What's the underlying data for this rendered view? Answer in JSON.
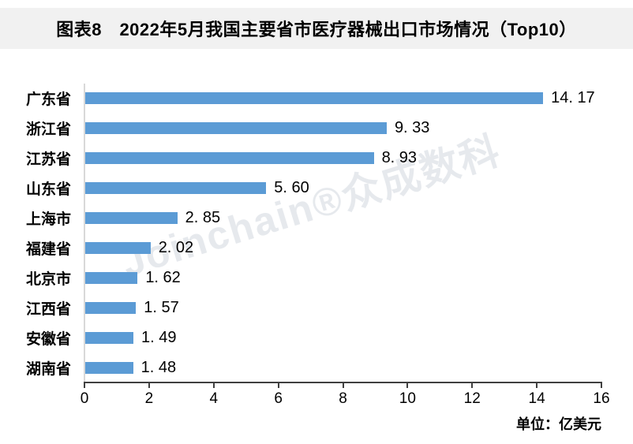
{
  "header": {
    "title": "图表8　2022年5月我国主要省市医疗器械出口市场情况（Top10）",
    "band_color": "#f1f1f1"
  },
  "watermark": {
    "text": "Joinchain®众成数科"
  },
  "chart_data": {
    "type": "bar",
    "orientation": "horizontal",
    "title": "图表8　2022年5月我国主要省市医疗器械出口市场情况（Top10）",
    "categories": [
      "广东省",
      "浙江省",
      "江苏省",
      "山东省",
      "上海市",
      "福建省",
      "北京市",
      "江西省",
      "安徽省",
      "湖南省"
    ],
    "values": [
      14.17,
      9.33,
      8.93,
      5.6,
      2.85,
      2.02,
      1.62,
      1.57,
      1.49,
      1.48
    ],
    "value_labels": [
      "14. 17",
      "9. 33",
      "8. 93",
      "5. 60",
      "2. 85",
      "2. 02",
      "1. 62",
      "1. 57",
      "1. 49",
      "1. 48"
    ],
    "xlabel": "",
    "ylabel": "",
    "xlim": [
      0,
      16
    ],
    "x_ticks": [
      0,
      2,
      4,
      6,
      8,
      10,
      12,
      14,
      16
    ],
    "unit_label": "单位：亿美元",
    "bar_color": "#5B9BD5",
    "axis_line_color": "#404040",
    "category_axis_line_color": "#d9d9d9",
    "grid": false,
    "legend": false
  }
}
